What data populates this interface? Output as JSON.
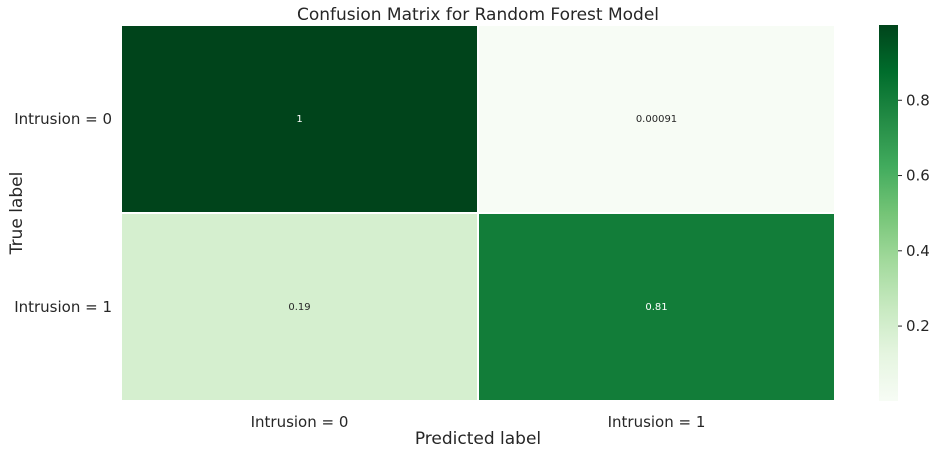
{
  "chart_data": {
    "type": "heatmap",
    "title": "Confusion Matrix for Random Forest Model",
    "xlabel": "Predicted label",
    "ylabel": "True label",
    "x_categories": [
      "Intrusion = 0",
      "Intrusion = 1"
    ],
    "y_categories": [
      "Intrusion = 0",
      "Intrusion = 1"
    ],
    "values": [
      [
        1,
        0.00091
      ],
      [
        0.19,
        0.81
      ]
    ],
    "value_labels": [
      [
        "1",
        "0.00091"
      ],
      [
        "0.19",
        "0.81"
      ]
    ],
    "colormap": "Greens",
    "vmin": 0,
    "vmax": 1,
    "colorbar_ticks": [
      "0.2",
      "0.4",
      "0.6",
      "0.8"
    ],
    "colorbar_tick_values": [
      0.2,
      0.4,
      0.6,
      0.8
    ],
    "colors": {
      "greens_stops": [
        "#f7fcf5",
        "#e5f5e0",
        "#c7e9c0",
        "#a1d99b",
        "#74c476",
        "#41ab5d",
        "#238b45",
        "#006d2c",
        "#00441b"
      ],
      "text_dark": "#262626",
      "cell_gap": "#ffffff"
    }
  }
}
